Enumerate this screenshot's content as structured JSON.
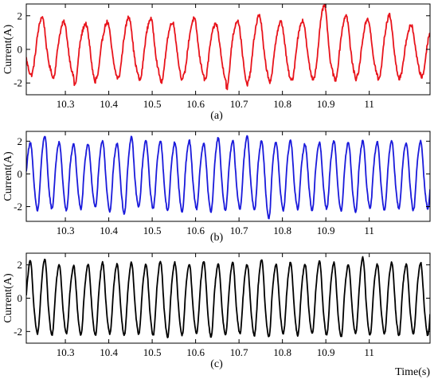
{
  "chart_data": [
    {
      "type": "line",
      "caption": "(a)",
      "xlabel": "",
      "ylabel": "Current(A)",
      "xlim": [
        10.21,
        11.14
      ],
      "ylim": [
        -2.7,
        2.7
      ],
      "xticks": [
        10.3,
        10.4,
        10.5,
        10.6,
        10.7,
        10.8,
        10.9,
        11
      ],
      "xtick_labels": [
        "10.3",
        "10.4",
        "10.5",
        "10.6",
        "10.7",
        "10.8",
        "10.9",
        "11"
      ],
      "yticks": [
        -2,
        0,
        2
      ],
      "ytick_labels": [
        "-2",
        "0",
        "2"
      ],
      "grid": false,
      "series": [
        {
          "color": "#e8141c",
          "waveform": {
            "t_start": 10.21,
            "t_end": 11.14,
            "period": 0.05,
            "peak_times": [
              10.245,
              10.295,
              10.345,
              10.395,
              10.445,
              10.495,
              10.545,
              10.595,
              10.645,
              10.695,
              10.745,
              10.795,
              10.845,
              10.895,
              10.945,
              10.995,
              11.045,
              11.095
            ],
            "peaks": [
              1.9,
              1.6,
              1.5,
              1.6,
              1.9,
              1.8,
              1.6,
              1.8,
              1.5,
              1.7,
              2.0,
              1.6,
              1.7,
              2.6,
              2.0,
              1.8,
              2.0,
              1.4
            ],
            "troughs": [
              -1.5,
              -1.7,
              -2.1,
              -1.7,
              -1.7,
              -1.8,
              -1.9,
              -1.6,
              -1.8,
              -2.3,
              -1.8,
              -1.9,
              -1.8,
              -1.7,
              -1.8,
              -1.6,
              -1.8,
              -1.6
            ],
            "noise": 0.25
          }
        }
      ]
    },
    {
      "type": "line",
      "caption": "(b)",
      "xlabel": "",
      "ylabel": "Current(A)",
      "xlim": [
        10.21,
        11.14
      ],
      "ylim": [
        -2.9,
        2.6
      ],
      "xticks": [
        10.3,
        10.4,
        10.5,
        10.6,
        10.7,
        10.8,
        10.9,
        11
      ],
      "xtick_labels": [
        "10.3",
        "10.4",
        "10.5",
        "10.6",
        "10.7",
        "10.8",
        "10.9",
        "11"
      ],
      "yticks": [
        -2,
        0,
        2
      ],
      "ytick_labels": [
        "-2",
        "0",
        "2"
      ],
      "grid": false,
      "series": [
        {
          "color": "#1a1adb",
          "waveform": {
            "t_start": 10.21,
            "t_end": 11.14,
            "period": 0.0333,
            "peaks": [
              1.9,
              2.3,
              1.9,
              1.8,
              1.8,
              2.0,
              1.8,
              2.2,
              2.0,
              2.0,
              1.9,
              2.0,
              1.8,
              2.2,
              2.0,
              2.3,
              2.0,
              1.9,
              2.0,
              1.8,
              1.9,
              2.0,
              1.9,
              2.0,
              1.9,
              2.0,
              1.9,
              2.0
            ],
            "troughs": [
              -2.2,
              -2.1,
              -2.2,
              -2.1,
              -2.0,
              -2.3,
              -2.4,
              -2.0,
              -2.1,
              -2.2,
              -2.3,
              -2.1,
              -2.3,
              -2.2,
              -2.1,
              -2.2,
              -2.7,
              -2.2,
              -2.1,
              -2.2,
              -2.1,
              -2.2,
              -2.3,
              -2.1,
              -2.2,
              -2.1,
              -2.2,
              -2.1
            ],
            "noise": 0.15
          }
        }
      ]
    },
    {
      "type": "line",
      "caption": "(c)",
      "xlabel": "Time(s)",
      "ylabel": "Current(A)",
      "xlim": [
        10.21,
        11.14
      ],
      "ylim": [
        -2.7,
        2.7
      ],
      "xticks": [
        10.3,
        10.4,
        10.5,
        10.6,
        10.7,
        10.8,
        10.9,
        11
      ],
      "xtick_labels": [
        "10.3",
        "10.4",
        "10.5",
        "10.6",
        "10.7",
        "10.8",
        "10.9",
        "11"
      ],
      "yticks": [
        -2,
        0,
        2
      ],
      "ytick_labels": [
        "-2",
        "0",
        "2"
      ],
      "grid": false,
      "series": [
        {
          "color": "#000000",
          "waveform": {
            "t_start": 10.21,
            "t_end": 11.14,
            "period": 0.0333,
            "peaks": [
              2.2,
              2.3,
              2.0,
              1.9,
              2.0,
              2.1,
              2.0,
              2.1,
              2.0,
              2.2,
              2.1,
              2.0,
              2.2,
              2.0,
              2.1,
              2.0,
              2.3,
              2.0,
              2.1,
              2.0,
              2.2,
              2.1,
              2.0,
              2.4,
              2.0,
              2.1,
              2.0,
              2.1
            ],
            "troughs": [
              -2.1,
              -2.2,
              -2.1,
              -2.2,
              -2.2,
              -2.1,
              -2.2,
              -2.1,
              -2.2,
              -2.3,
              -2.2,
              -2.1,
              -2.3,
              -2.2,
              -2.1,
              -2.2,
              -2.3,
              -2.1,
              -2.2,
              -2.1,
              -2.2,
              -2.3,
              -2.1,
              -2.2,
              -2.1,
              -2.2,
              -2.1,
              -2.2
            ],
            "noise": 0.12
          }
        }
      ]
    }
  ]
}
